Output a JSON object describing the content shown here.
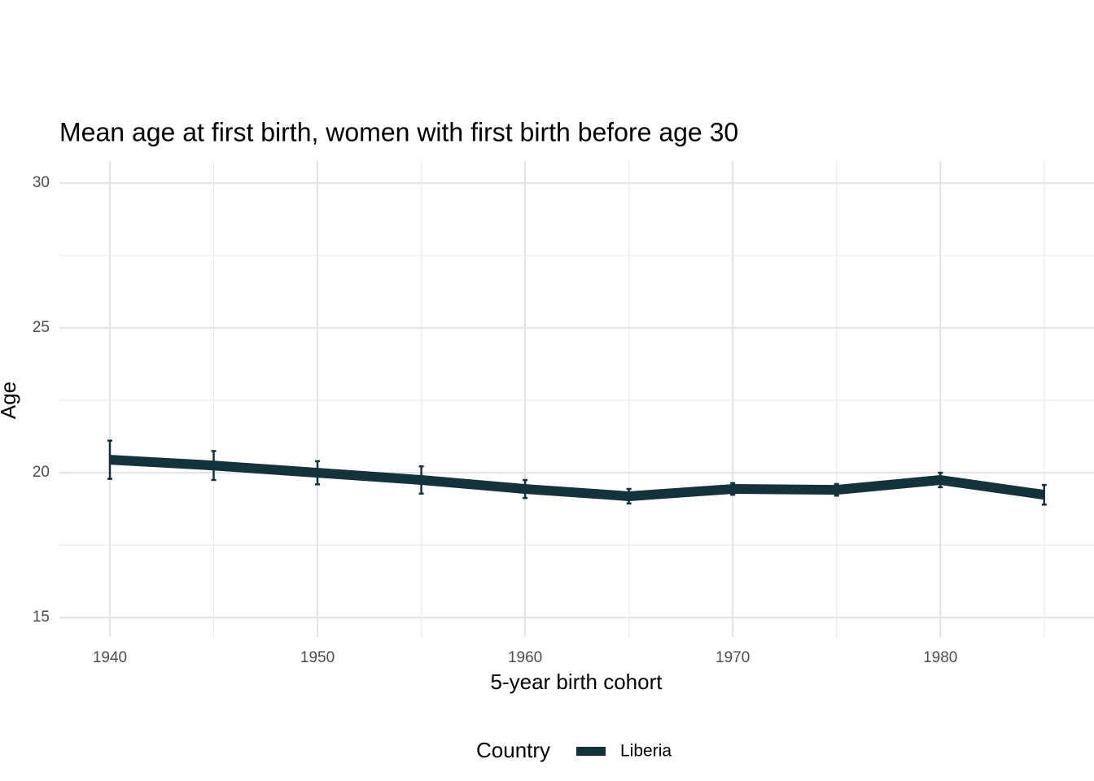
{
  "chart_data": {
    "type": "line",
    "title": "Mean age at first birth, women with first birth before age 30",
    "x_label": "5-year birth cohort",
    "y_label": "Age",
    "x": [
      1940,
      1945,
      1950,
      1955,
      1960,
      1965,
      1970,
      1975,
      1980,
      1985
    ],
    "series": [
      {
        "name": "Liberia",
        "color": "#12333c",
        "values": [
          20.45,
          20.25,
          20.0,
          19.75,
          19.44,
          19.19,
          19.44,
          19.41,
          19.75,
          19.24
        ],
        "errors": [
          0.66,
          0.5,
          0.4,
          0.47,
          0.31,
          0.25,
          0.2,
          0.2,
          0.25,
          0.34
        ]
      }
    ],
    "legend_title": "Country",
    "legend": "bottom",
    "xlim": [
      1937.57,
      1987.4
    ],
    "xticks": [
      1940,
      1950,
      1960,
      1970,
      1980
    ],
    "ylim": [
      14.33,
      30.76
    ],
    "yticks": [
      15,
      20,
      25,
      30
    ],
    "grid": true
  }
}
